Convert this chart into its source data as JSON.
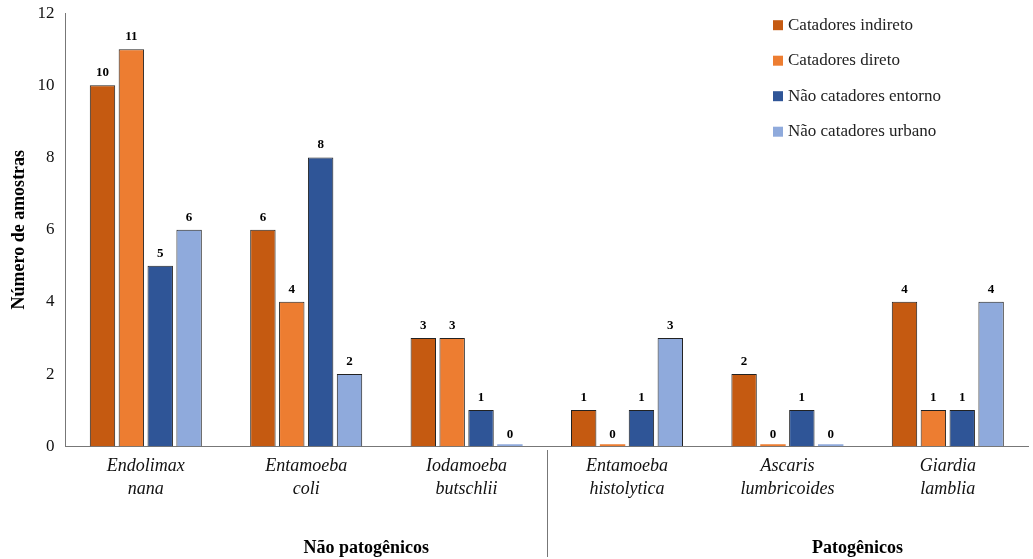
{
  "chart_data": {
    "type": "bar",
    "categories": [
      "Endolimax nana",
      "Entamoeba coli",
      "Iodamoeba butschlii",
      "Entamoeba histolytica",
      "Ascaris lumbricoides",
      "Giardia lamblia"
    ],
    "series": [
      {
        "name": "Catadores indireto",
        "color": "#c55a11",
        "values": [
          10,
          6,
          3,
          1,
          2,
          4
        ]
      },
      {
        "name": "Catadores direto",
        "color": "#ed7d31",
        "values": [
          11,
          4,
          3,
          0,
          0,
          1
        ]
      },
      {
        "name": "Não catadores entorno",
        "color": "#2f5597",
        "values": [
          5,
          8,
          1,
          1,
          1,
          1
        ]
      },
      {
        "name": "Não catadores urbano",
        "color": "#8faadc",
        "values": [
          6,
          2,
          0,
          3,
          0,
          4
        ]
      }
    ],
    "ylabel": "Número de amostras",
    "ylim": [
      0,
      12
    ],
    "yticks": [
      0,
      2,
      4,
      6,
      8,
      10,
      12
    ],
    "grid": false,
    "legend": "top right",
    "data_labels": true,
    "annotations": [
      "Não patogênicos",
      "Patogênicos"
    ]
  }
}
